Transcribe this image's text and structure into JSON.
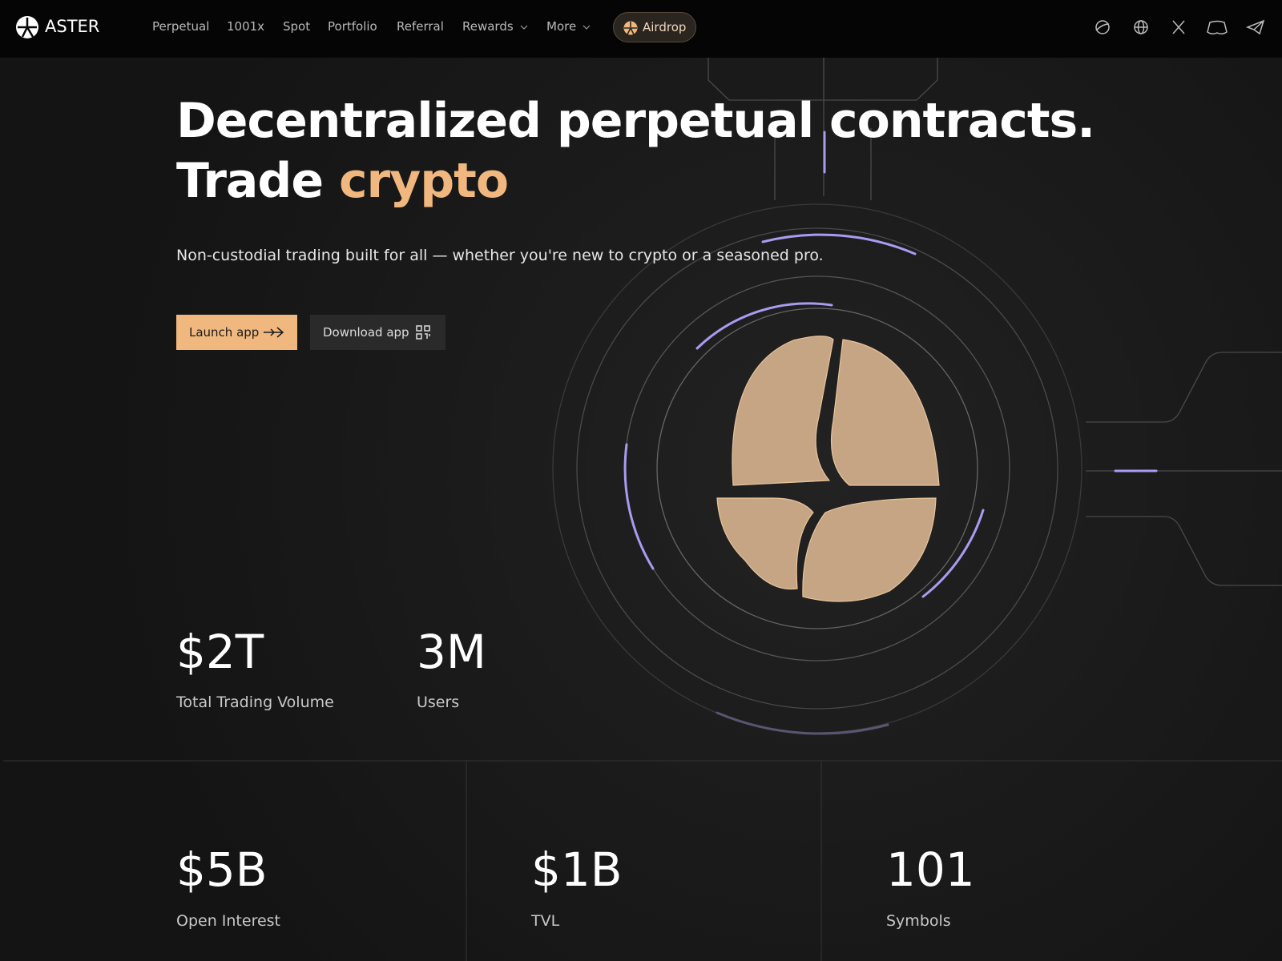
{
  "nav": {
    "brand": "ASTER",
    "links": [
      "Perpetual",
      "1001x",
      "Spot",
      "Portfolio",
      "Referral",
      "Rewards",
      "More"
    ],
    "airdrop": "Airdrop"
  },
  "hero": {
    "title_line1": "Decentralized perpetual contracts.",
    "title_line2_prefix": "Trade",
    "title_line2_highlight": "crypto",
    "subtitle": "Non-custodial trading built for all — whether you're new to crypto or a seasoned pro.",
    "launch_button": "Launch app",
    "download_button": "Download app"
  },
  "stats": [
    {
      "value": "$2T",
      "label": "Total Trading Volume"
    },
    {
      "value": "3M",
      "label": "Users"
    }
  ],
  "bottom_stats": [
    {
      "value": "$5B",
      "label": "Open Interest"
    },
    {
      "value": "$1B",
      "label": "TVL"
    },
    {
      "value": "101",
      "label": "Symbols"
    }
  ]
}
